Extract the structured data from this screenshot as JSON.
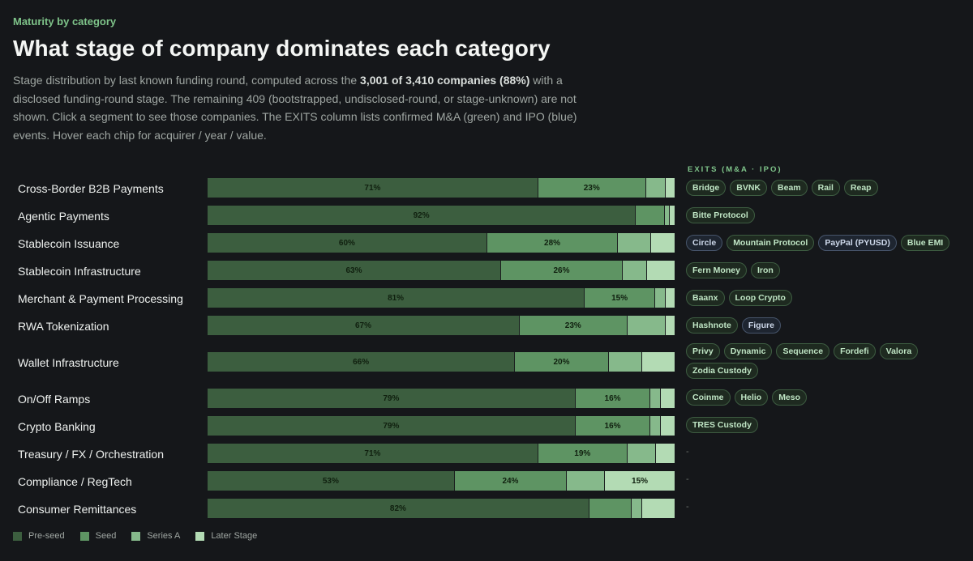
{
  "header": {
    "eyebrow": "Maturity by category",
    "title": "What stage of company dominates each category",
    "desc_1": "Stage distribution by last known funding round, computed across the ",
    "desc_bold": "3,001 of 3,410 companies (88%)",
    "desc_2": " with a disclosed funding-round stage. The remaining 409 (bootstrapped, undisclosed-round, or stage-unknown) are not shown. Click a segment to see those companies. The EXITS column lists confirmed M&A (green) and IPO (blue) events. Hover each chip for acquirer / year / value."
  },
  "exits_header": "EXITS (M&A · IPO)",
  "empty_exits_mark": "-",
  "colors": {
    "background": "#15171a",
    "pre_seed": "#3c5e3f",
    "seed": "#5e9463",
    "series_a": "#86b98b",
    "later_stage": "#b3dbb4",
    "accent": "#7fc48a",
    "ma_chip": "#1e2a20",
    "ipo_chip": "#1e2530"
  },
  "chart_data": {
    "type": "bar",
    "orientation": "horizontal",
    "stacked": true,
    "normalized_percent": true,
    "xlim": [
      0,
      100
    ],
    "legend_position": "bottom-left",
    "categories": [
      "Cross-Border B2B Payments",
      "Agentic Payments",
      "Stablecoin Issuance",
      "Stablecoin Infrastructure",
      "Merchant & Payment Processing",
      "RWA Tokenization",
      "Wallet Infrastructure",
      "On/Off Ramps",
      "Crypto Banking",
      "Treasury / FX / Orchestration",
      "Compliance / RegTech",
      "Consumer Remittances"
    ],
    "series": [
      {
        "name": "Pre-seed",
        "values": [
          71,
          92,
          60,
          63,
          81,
          67,
          66,
          79,
          79,
          71,
          53,
          82
        ],
        "labels": [
          "71%",
          "92%",
          "60%",
          "63%",
          "81%",
          "67%",
          "66%",
          "79%",
          "79%",
          "71%",
          "53%",
          "82%"
        ]
      },
      {
        "name": "Seed",
        "values": [
          23,
          6,
          28,
          26,
          15,
          23,
          20,
          16,
          16,
          19,
          24,
          9
        ],
        "labels": [
          "23%",
          "",
          "28%",
          "26%",
          "15%",
          "23%",
          "20%",
          "16%",
          "16%",
          "19%",
          "24%",
          ""
        ]
      },
      {
        "name": "Series A",
        "values": [
          4,
          1,
          7,
          5,
          2,
          8,
          7,
          2,
          2,
          6,
          8,
          2
        ],
        "labels": [
          "",
          "",
          "",
          "",
          "",
          "",
          "",
          "",
          "",
          "",
          "",
          ""
        ]
      },
      {
        "name": "Later Stage",
        "values": [
          2,
          1,
          5,
          6,
          2,
          2,
          7,
          3,
          3,
          4,
          15,
          7
        ],
        "labels": [
          "",
          "",
          "",
          "",
          "",
          "",
          "",
          "",
          "",
          "",
          "15%",
          ""
        ]
      }
    ]
  },
  "exits": [
    [
      {
        "name": "Bridge",
        "type": "ma"
      },
      {
        "name": "BVNK",
        "type": "ma"
      },
      {
        "name": "Beam",
        "type": "ma"
      },
      {
        "name": "Rail",
        "type": "ma"
      },
      {
        "name": "Reap",
        "type": "ma"
      }
    ],
    [
      {
        "name": "Bitte Protocol",
        "type": "ma"
      }
    ],
    [
      {
        "name": "Circle",
        "type": "ipo"
      },
      {
        "name": "Mountain Protocol",
        "type": "ma"
      },
      {
        "name": "PayPal (PYUSD)",
        "type": "ipo"
      },
      {
        "name": "Blue EMI",
        "type": "ma"
      }
    ],
    [
      {
        "name": "Fern Money",
        "type": "ma"
      },
      {
        "name": "Iron",
        "type": "ma"
      }
    ],
    [
      {
        "name": "Baanx",
        "type": "ma"
      },
      {
        "name": "Loop Crypto",
        "type": "ma"
      }
    ],
    [
      {
        "name": "Hashnote",
        "type": "ma"
      },
      {
        "name": "Figure",
        "type": "ipo"
      }
    ],
    [
      {
        "name": "Privy",
        "type": "ma"
      },
      {
        "name": "Dynamic",
        "type": "ma"
      },
      {
        "name": "Sequence",
        "type": "ma"
      },
      {
        "name": "Fordefi",
        "type": "ma"
      },
      {
        "name": "Valora",
        "type": "ma"
      },
      {
        "name": "Zodia Custody",
        "type": "ma"
      }
    ],
    [
      {
        "name": "Coinme",
        "type": "ma"
      },
      {
        "name": "Helio",
        "type": "ma"
      },
      {
        "name": "Meso",
        "type": "ma"
      }
    ],
    [
      {
        "name": "TRES Custody",
        "type": "ma"
      }
    ],
    [],
    [],
    []
  ]
}
